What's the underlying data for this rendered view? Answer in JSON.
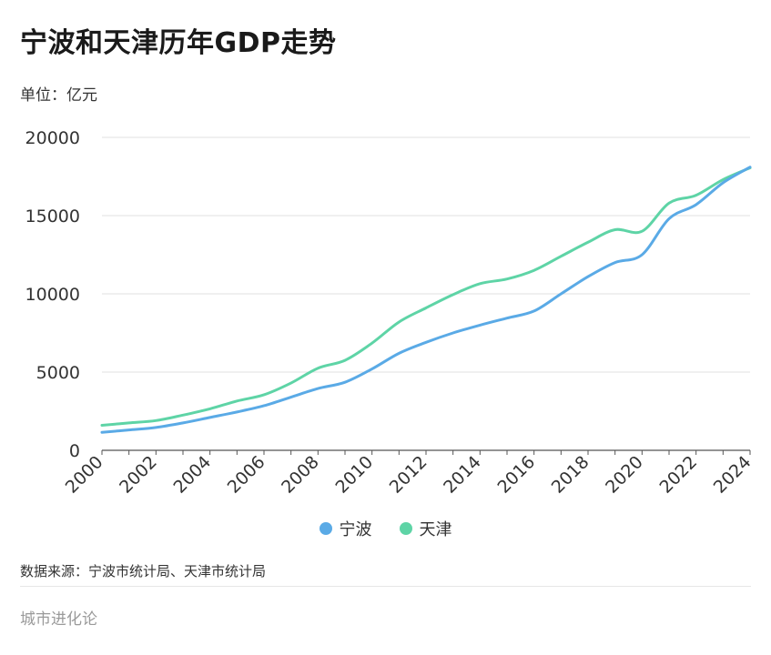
{
  "header": {
    "title": "宁波和天津历年GDP走势",
    "unit": "单位：亿元"
  },
  "footer": {
    "source": "数据来源：宁波市统计局、天津市统计局",
    "brand": "城市进化论"
  },
  "chart_data": {
    "type": "line",
    "x": [
      2000,
      2001,
      2002,
      2003,
      2004,
      2005,
      2006,
      2007,
      2008,
      2009,
      2010,
      2011,
      2012,
      2013,
      2014,
      2015,
      2016,
      2017,
      2018,
      2019,
      2020,
      2021,
      2022,
      2023,
      2024
    ],
    "x_tick_labels": [
      "2000",
      "2002",
      "2004",
      "2006",
      "2008",
      "2010",
      "2012",
      "2014",
      "2016",
      "2018",
      "2020",
      "2022",
      "2024"
    ],
    "y_ticks": [
      0,
      5000,
      10000,
      15000,
      20000
    ],
    "y_tick_labels": [
      "0",
      "5000",
      "10000",
      "15000",
      "20000"
    ],
    "ylim": [
      0,
      20000
    ],
    "xlim": [
      2000,
      2024
    ],
    "grid": true,
    "legend_position": "bottom-center",
    "series": [
      {
        "name": "宁波",
        "color": "#5aaae6",
        "values": [
          1150,
          1300,
          1460,
          1750,
          2100,
          2450,
          2850,
          3400,
          3950,
          4350,
          5200,
          6200,
          6900,
          7500,
          8000,
          8450,
          8900,
          10000,
          11100,
          12000,
          12500,
          14800,
          15700,
          17100,
          18100
        ]
      },
      {
        "name": "天津",
        "color": "#5ed4a6",
        "values": [
          1600,
          1750,
          1900,
          2250,
          2650,
          3150,
          3550,
          4300,
          5250,
          5750,
          6850,
          8200,
          9100,
          9950,
          10650,
          10950,
          11500,
          12400,
          13300,
          14100,
          14000,
          15800,
          16300,
          17300,
          18050
        ]
      }
    ]
  }
}
